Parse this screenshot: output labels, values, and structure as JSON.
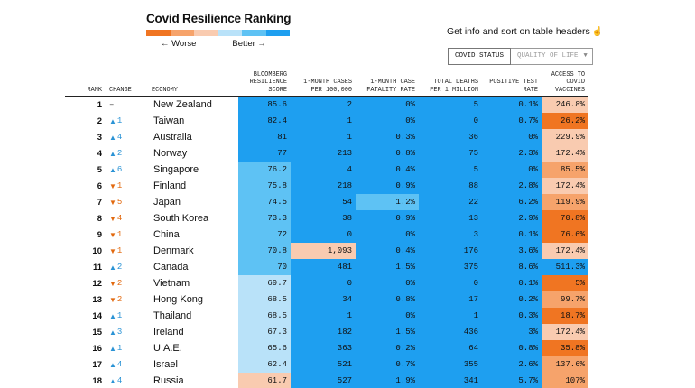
{
  "header": {
    "title": "Covid Resilience Ranking",
    "worse_label": "← Worse",
    "better_label": "Better →",
    "hint": "Get info and sort on table headers",
    "hint_icon": "pointer-hand-icon"
  },
  "scale_colors": [
    "#f07522",
    "#f6a36b",
    "#f9cbb0",
    "#b9e2f9",
    "#5ec2f4",
    "#1e9ff0"
  ],
  "tabs": {
    "covid_status": "COVID STATUS",
    "quality_of_life": "QUALITY OF LIFE"
  },
  "columns": {
    "rank": "RANK",
    "change": "CHANGE",
    "economy": "ECONOMY",
    "score": [
      "BLOOMBERG",
      "RESILIENCE",
      "SCORE"
    ],
    "cases": [
      "1-MONTH CASES",
      "PER 100,000"
    ],
    "fatality": [
      "1-MONTH CASE",
      "FATALITY RATE"
    ],
    "deaths": [
      "TOTAL DEATHS",
      "PER 1 MILLION"
    ],
    "positive": [
      "POSITIVE TEST",
      "RATE"
    ],
    "vaccines": [
      "ACCESS TO",
      "COVID",
      "VACCINES"
    ]
  },
  "palette": {
    "dark_blue": "#1e9ff0",
    "mid_blue": "#5ec2f4",
    "light_blue": "#b9e2f9",
    "peach": "#f9cbb0",
    "light_orange": "#f6a36b",
    "orange": "#f07522"
  },
  "rows": [
    {
      "rank": "1",
      "dir": "eq",
      "change": "–",
      "economy": "New Zealand",
      "score": "85.6",
      "cases": "2",
      "fatality": "0%",
      "deaths": "5",
      "positive": "0.1%",
      "vaccines": "246.8%",
      "c": [
        "#1e9ff0",
        "#1e9ff0",
        "#1e9ff0",
        "#1e9ff0",
        "#1e9ff0",
        "#f9cbb0"
      ]
    },
    {
      "rank": "2",
      "dir": "up",
      "change": "1",
      "economy": "Taiwan",
      "score": "82.4",
      "cases": "1",
      "fatality": "0%",
      "deaths": "0",
      "positive": "0.7%",
      "vaccines": "26.2%",
      "c": [
        "#1e9ff0",
        "#1e9ff0",
        "#1e9ff0",
        "#1e9ff0",
        "#1e9ff0",
        "#f07522"
      ]
    },
    {
      "rank": "3",
      "dir": "up",
      "change": "4",
      "economy": "Australia",
      "score": "81",
      "cases": "1",
      "fatality": "0.3%",
      "deaths": "36",
      "positive": "0%",
      "vaccines": "229.9%",
      "c": [
        "#1e9ff0",
        "#1e9ff0",
        "#1e9ff0",
        "#1e9ff0",
        "#1e9ff0",
        "#f9cbb0"
      ]
    },
    {
      "rank": "4",
      "dir": "up",
      "change": "2",
      "economy": "Norway",
      "score": "77",
      "cases": "213",
      "fatality": "0.8%",
      "deaths": "75",
      "positive": "2.3%",
      "vaccines": "172.4%",
      "c": [
        "#1e9ff0",
        "#1e9ff0",
        "#1e9ff0",
        "#1e9ff0",
        "#1e9ff0",
        "#f9cbb0"
      ]
    },
    {
      "rank": "5",
      "dir": "up",
      "change": "6",
      "economy": "Singapore",
      "score": "76.2",
      "cases": "4",
      "fatality": "0.4%",
      "deaths": "5",
      "positive": "0%",
      "vaccines": "85.5%",
      "c": [
        "#5ec2f4",
        "#1e9ff0",
        "#1e9ff0",
        "#1e9ff0",
        "#1e9ff0",
        "#f6a36b"
      ]
    },
    {
      "rank": "6",
      "dir": "down",
      "change": "1",
      "economy": "Finland",
      "score": "75.8",
      "cases": "218",
      "fatality": "0.9%",
      "deaths": "88",
      "positive": "2.8%",
      "vaccines": "172.4%",
      "c": [
        "#5ec2f4",
        "#1e9ff0",
        "#1e9ff0",
        "#1e9ff0",
        "#1e9ff0",
        "#f9cbb0"
      ]
    },
    {
      "rank": "7",
      "dir": "down",
      "change": "5",
      "economy": "Japan",
      "score": "74.5",
      "cases": "54",
      "fatality": "1.2%",
      "deaths": "22",
      "positive": "6.2%",
      "vaccines": "119.9%",
      "c": [
        "#5ec2f4",
        "#1e9ff0",
        "#5ec2f4",
        "#1e9ff0",
        "#1e9ff0",
        "#f6a36b"
      ]
    },
    {
      "rank": "8",
      "dir": "down",
      "change": "4",
      "economy": "South Korea",
      "score": "73.3",
      "cases": "38",
      "fatality": "0.9%",
      "deaths": "13",
      "positive": "2.9%",
      "vaccines": "70.8%",
      "c": [
        "#5ec2f4",
        "#1e9ff0",
        "#1e9ff0",
        "#1e9ff0",
        "#1e9ff0",
        "#f07522"
      ]
    },
    {
      "rank": "9",
      "dir": "down",
      "change": "1",
      "economy": "China",
      "score": "72",
      "cases": "0",
      "fatality": "0%",
      "deaths": "3",
      "positive": "0.1%",
      "vaccines": "76.6%",
      "c": [
        "#5ec2f4",
        "#1e9ff0",
        "#1e9ff0",
        "#1e9ff0",
        "#1e9ff0",
        "#f07522"
      ]
    },
    {
      "rank": "10",
      "dir": "down",
      "change": "1",
      "economy": "Denmark",
      "score": "70.8",
      "cases": "1,093",
      "fatality": "0.4%",
      "deaths": "176",
      "positive": "3.6%",
      "vaccines": "172.4%",
      "c": [
        "#5ec2f4",
        "#f9cbb0",
        "#1e9ff0",
        "#1e9ff0",
        "#1e9ff0",
        "#f9cbb0"
      ]
    },
    {
      "rank": "11",
      "dir": "up",
      "change": "2",
      "economy": "Canada",
      "score": "70",
      "cases": "481",
      "fatality": "1.5%",
      "deaths": "375",
      "positive": "8.6%",
      "vaccines": "511.3%",
      "c": [
        "#5ec2f4",
        "#1e9ff0",
        "#1e9ff0",
        "#1e9ff0",
        "#1e9ff0",
        "#1e9ff0"
      ]
    },
    {
      "rank": "12",
      "dir": "down",
      "change": "2",
      "economy": "Vietnam",
      "score": "69.7",
      "cases": "0",
      "fatality": "0%",
      "deaths": "0",
      "positive": "0.1%",
      "vaccines": "5%",
      "c": [
        "#b9e2f9",
        "#1e9ff0",
        "#1e9ff0",
        "#1e9ff0",
        "#1e9ff0",
        "#f07522"
      ]
    },
    {
      "rank": "13",
      "dir": "down",
      "change": "2",
      "economy": "Hong Kong",
      "score": "68.5",
      "cases": "34",
      "fatality": "0.8%",
      "deaths": "17",
      "positive": "0.2%",
      "vaccines": "99.7%",
      "c": [
        "#b9e2f9",
        "#1e9ff0",
        "#1e9ff0",
        "#1e9ff0",
        "#1e9ff0",
        "#f6a36b"
      ]
    },
    {
      "rank": "14",
      "dir": "up",
      "change": "1",
      "economy": "Thailand",
      "score": "68.5",
      "cases": "1",
      "fatality": "0%",
      "deaths": "1",
      "positive": "0.3%",
      "vaccines": "18.7%",
      "c": [
        "#b9e2f9",
        "#1e9ff0",
        "#1e9ff0",
        "#1e9ff0",
        "#1e9ff0",
        "#f07522"
      ]
    },
    {
      "rank": "15",
      "dir": "up",
      "change": "3",
      "economy": "Ireland",
      "score": "67.3",
      "cases": "182",
      "fatality": "1.5%",
      "deaths": "436",
      "positive": "3%",
      "vaccines": "172.4%",
      "c": [
        "#b9e2f9",
        "#1e9ff0",
        "#1e9ff0",
        "#1e9ff0",
        "#1e9ff0",
        "#f9cbb0"
      ]
    },
    {
      "rank": "16",
      "dir": "up",
      "change": "1",
      "economy": "U.A.E.",
      "score": "65.6",
      "cases": "363",
      "fatality": "0.2%",
      "deaths": "64",
      "positive": "0.8%",
      "vaccines": "35.8%",
      "c": [
        "#b9e2f9",
        "#1e9ff0",
        "#1e9ff0",
        "#1e9ff0",
        "#1e9ff0",
        "#f07522"
      ]
    },
    {
      "rank": "17",
      "dir": "up",
      "change": "4",
      "economy": "Israel",
      "score": "62.4",
      "cases": "521",
      "fatality": "0.7%",
      "deaths": "355",
      "positive": "2.6%",
      "vaccines": "137.6%",
      "c": [
        "#b9e2f9",
        "#1e9ff0",
        "#1e9ff0",
        "#1e9ff0",
        "#1e9ff0",
        "#f6a36b"
      ]
    },
    {
      "rank": "18",
      "dir": "up",
      "change": "4",
      "economy": "Russia",
      "score": "61.7",
      "cases": "527",
      "fatality": "1.9%",
      "deaths": "341",
      "positive": "5.7%",
      "vaccines": "107%",
      "c": [
        "#f9cbb0",
        "#1e9ff0",
        "#1e9ff0",
        "#1e9ff0",
        "#1e9ff0",
        "#f6a36b"
      ]
    }
  ]
}
